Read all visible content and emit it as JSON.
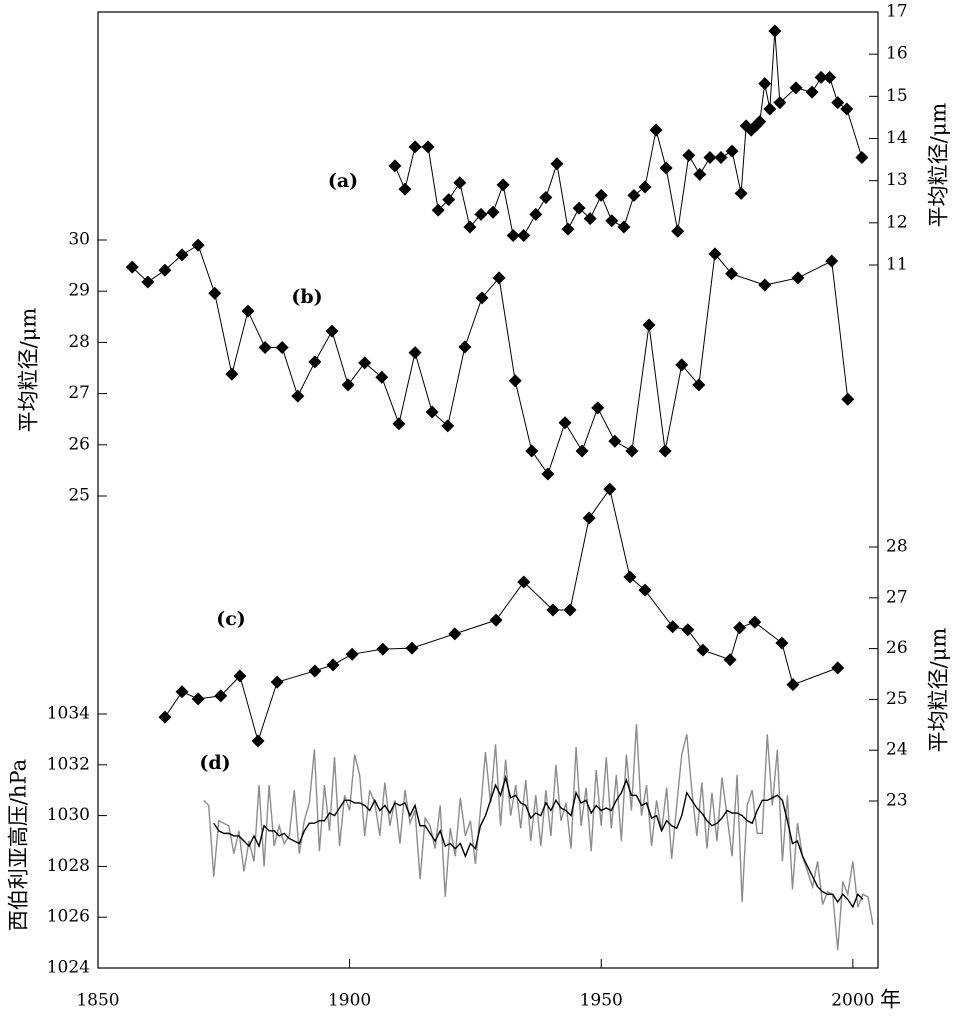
{
  "chart_data": [
    {
      "type": "line",
      "label": "(a)",
      "y_label": "平均粒径/μm",
      "axis": "right",
      "ylim": [
        11,
        17
      ],
      "yticks": [
        11,
        12,
        13,
        14,
        15,
        16,
        17
      ],
      "series": [
        {
          "color": "#000000",
          "marker": "diamond",
          "x": [
            1909.0,
            1911.0,
            1913.0,
            1915.6,
            1917.6,
            1919.7,
            1921.9,
            1923.9,
            1926.1,
            1928.5,
            1930.5,
            1932.5,
            1934.6,
            1937.0,
            1939.0,
            1941.2,
            1943.4,
            1945.6,
            1947.8,
            1950.0,
            1952.1,
            1954.5,
            1956.5,
            1958.7,
            1960.9,
            1962.9,
            1965.2,
            1967.4,
            1969.6,
            1971.6,
            1973.8,
            1976.0,
            1977.8,
            1978.8,
            1979.8,
            1980.7,
            1981.5,
            1982.5,
            1983.5,
            1984.5,
            1985.5,
            1988.7,
            1991.9,
            1993.7,
            1995.4,
            1997.0,
            1998.8,
            2001.8
          ],
          "values": [
            13.35,
            12.8,
            13.8,
            13.8,
            12.3,
            12.55,
            12.95,
            11.9,
            12.2,
            12.25,
            12.9,
            11.7,
            11.7,
            12.2,
            12.6,
            13.4,
            11.85,
            12.35,
            12.1,
            12.65,
            12.05,
            11.9,
            12.65,
            12.85,
            14.2,
            13.3,
            11.8,
            13.6,
            13.15,
            13.55,
            13.55,
            13.7,
            12.7,
            14.3,
            14.2,
            14.3,
            14.4,
            15.3,
            14.7,
            16.55,
            14.85,
            15.2,
            15.1,
            15.45,
            15.45,
            14.85,
            14.7,
            13.55
          ]
        }
      ]
    },
    {
      "type": "line",
      "label": "(b)",
      "y_label": "平均粒径/μm",
      "axis": "left",
      "ylim": [
        25,
        30
      ],
      "yticks": [
        25,
        26,
        27,
        28,
        29,
        30
      ],
      "series": [
        {
          "color": "#000000",
          "marker": "diamond",
          "x": [
            1856.8,
            1859.9,
            1863.3,
            1866.7,
            1869.9,
            1873.2,
            1876.6,
            1879.8,
            1883.2,
            1886.6,
            1889.7,
            1893.1,
            1896.5,
            1899.7,
            1903.0,
            1906.4,
            1909.8,
            1913.0,
            1916.4,
            1919.5,
            1922.9,
            1926.3,
            1929.7,
            1932.9,
            1936.2,
            1939.4,
            1942.8,
            1946.2,
            1949.3,
            1952.7,
            1956.1,
            1959.5,
            1962.7,
            1966.0,
            1969.4,
            1972.6,
            1975.9,
            1982.5,
            1989.1,
            1995.8,
            1999.0
          ],
          "values": [
            29.47,
            29.18,
            29.41,
            29.71,
            29.9,
            28.96,
            27.38,
            28.61,
            27.9,
            27.9,
            26.95,
            27.62,
            28.22,
            27.17,
            27.6,
            27.32,
            26.41,
            27.8,
            26.64,
            26.37,
            27.91,
            28.87,
            29.26,
            27.25,
            25.88,
            25.43,
            26.43,
            25.88,
            26.72,
            26.07,
            25.88,
            28.34,
            25.88,
            27.56,
            27.17,
            29.73,
            29.34,
            29.12,
            29.26,
            29.59,
            26.89
          ]
        }
      ]
    },
    {
      "type": "line",
      "label": "(c)",
      "y_label": "平均粒径/μm",
      "axis": "right",
      "ylim": [
        23,
        28
      ],
      "yticks": [
        23,
        24,
        25,
        26,
        27,
        28
      ],
      "series": [
        {
          "color": "#000000",
          "marker": "diamond",
          "x": [
            1863.3,
            1866.7,
            1869.9,
            1874.4,
            1878.2,
            1881.8,
            1885.6,
            1893.1,
            1896.7,
            1900.5,
            1906.6,
            1912.4,
            1920.9,
            1929.1,
            1934.6,
            1940.4,
            1943.8,
            1947.6,
            1951.7,
            1955.7,
            1958.7,
            1964.2,
            1967.2,
            1970.2,
            1975.6,
            1977.5,
            1980.5,
            1985.9,
            1988.1,
            1997.0
          ],
          "values": [
            24.65,
            25.15,
            25.01,
            25.07,
            25.46,
            24.18,
            25.34,
            25.56,
            25.68,
            25.89,
            25.99,
            26.01,
            26.29,
            26.56,
            27.31,
            26.76,
            26.76,
            28.57,
            29.14,
            27.41,
            27.15,
            26.43,
            26.37,
            25.97,
            25.78,
            26.41,
            26.52,
            26.11,
            25.29,
            25.62
          ]
        }
      ]
    },
    {
      "type": "line",
      "label": "(d)",
      "y_label": "西伯利亚高压/hPa",
      "axis": "left",
      "ylim": [
        1024,
        1034
      ],
      "yticks": [
        1024,
        1026,
        1028,
        1030,
        1032,
        1034
      ],
      "xlim": [
        1850,
        2005
      ],
      "xticks": [
        1850,
        1900,
        1950,
        2000
      ],
      "x_label": "年",
      "series": [
        {
          "color": "#8c8c8c",
          "x": [
            1871,
            1872,
            1873,
            1874,
            1875,
            1876,
            1877,
            1878,
            1879,
            1880,
            1881,
            1882,
            1883,
            1884,
            1885,
            1886,
            1887,
            1888,
            1889,
            1890,
            1891,
            1892,
            1893,
            1894,
            1895,
            1896,
            1897,
            1898,
            1899,
            1900,
            1901,
            1902,
            1903,
            1904,
            1905,
            1906,
            1907,
            1908,
            1909,
            1910,
            1911,
            1912,
            1913,
            1914,
            1915,
            1916,
            1917,
            1918,
            1919,
            1920,
            1921,
            1922,
            1923,
            1924,
            1925,
            1926,
            1927,
            1928,
            1929,
            1930,
            1931,
            1932,
            1933,
            1934,
            1935,
            1936,
            1937,
            1938,
            1939,
            1940,
            1941,
            1942,
            1943,
            1944,
            1945,
            1946,
            1947,
            1948,
            1949,
            1950,
            1951,
            1952,
            1953,
            1954,
            1955,
            1956,
            1957,
            1958,
            1959,
            1960,
            1961,
            1962,
            1963,
            1964,
            1965,
            1966,
            1967,
            1968,
            1969,
            1970,
            1971,
            1972,
            1973,
            1974,
            1975,
            1976,
            1977,
            1978,
            1979,
            1980,
            1981,
            1982,
            1983,
            1984,
            1985,
            1986,
            1987,
            1988,
            1989,
            1990,
            1991,
            1992,
            1993,
            1994,
            1995,
            1996,
            1997,
            1998,
            1999,
            2000,
            2001,
            2002,
            2003,
            2004
          ],
          "values": [
            1030.6,
            1030.4,
            1027.6,
            1029.8,
            1029.7,
            1029.6,
            1028.5,
            1029.4,
            1027.8,
            1029.0,
            1028.2,
            1031.2,
            1028.0,
            1031.2,
            1028.8,
            1029.6,
            1028.9,
            1029.2,
            1031.0,
            1028.5,
            1029.8,
            1030.5,
            1032.6,
            1028.6,
            1031.2,
            1029.4,
            1032.3,
            1028.8,
            1030.8,
            1030.2,
            1032.4,
            1031.6,
            1029.2,
            1031.0,
            1030.5,
            1029.2,
            1031.3,
            1029.6,
            1030.6,
            1028.9,
            1031.0,
            1029.7,
            1030.2,
            1027.5,
            1029.9,
            1029.6,
            1028.7,
            1030.4,
            1026.8,
            1029.5,
            1028.4,
            1030.7,
            1029.2,
            1029.8,
            1028.1,
            1030.2,
            1032.5,
            1030.5,
            1032.8,
            1029.6,
            1032.2,
            1030.0,
            1031.2,
            1029.5,
            1031.4,
            1029.0,
            1030.8,
            1028.8,
            1031.0,
            1029.2,
            1032.0,
            1029.8,
            1030.5,
            1028.7,
            1032.7,
            1029.6,
            1031.1,
            1028.6,
            1031.8,
            1029.6,
            1032.3,
            1029.5,
            1031.6,
            1029.0,
            1032.4,
            1030.2,
            1033.6,
            1030.0,
            1031.2,
            1028.8,
            1030.6,
            1029.4,
            1031.1,
            1028.3,
            1030.4,
            1032.4,
            1033.2,
            1031.0,
            1029.2,
            1031.3,
            1028.7,
            1030.9,
            1029.0,
            1031.5,
            1030.0,
            1028.4,
            1031.6,
            1026.6,
            1030.4,
            1031.0,
            1029.3,
            1029.3,
            1033.2,
            1030.4,
            1032.6,
            1028.2,
            1030.8,
            1027.1,
            1029.7,
            1028.4,
            1027.8,
            1027.2,
            1028.2,
            1026.5,
            1027.0,
            1026.9,
            1024.7,
            1027.4,
            1026.9,
            1028.2,
            1026.4,
            1026.9,
            1026.8,
            1025.7
          ]
        },
        {
          "color": "#000000",
          "x": [
            1873,
            1874,
            1875,
            1876,
            1877,
            1878,
            1879,
            1880,
            1881,
            1882,
            1883,
            1884,
            1885,
            1886,
            1887,
            1888,
            1889,
            1890,
            1891,
            1892,
            1893,
            1894,
            1895,
            1896,
            1897,
            1898,
            1899,
            1900,
            1901,
            1902,
            1903,
            1904,
            1905,
            1906,
            1907,
            1908,
            1909,
            1910,
            1911,
            1912,
            1913,
            1914,
            1915,
            1916,
            1917,
            1918,
            1919,
            1920,
            1921,
            1922,
            1923,
            1924,
            1925,
            1926,
            1927,
            1928,
            1929,
            1930,
            1931,
            1932,
            1933,
            1934,
            1935,
            1936,
            1937,
            1938,
            1939,
            1940,
            1941,
            1942,
            1943,
            1944,
            1945,
            1946,
            1947,
            1948,
            1949,
            1950,
            1951,
            1952,
            1953,
            1954,
            1955,
            1956,
            1957,
            1958,
            1959,
            1960,
            1961,
            1962,
            1963,
            1964,
            1965,
            1966,
            1967,
            1968,
            1969,
            1970,
            1971,
            1972,
            1973,
            1974,
            1975,
            1976,
            1977,
            1978,
            1979,
            1980,
            1981,
            1982,
            1983,
            1984,
            1985,
            1986,
            1987,
            1988,
            1989,
            1990,
            1991,
            1992,
            1993,
            1994,
            1995,
            1996,
            1997,
            1998,
            1999,
            2000,
            2001,
            2002
          ],
          "values": [
            1029.7,
            1029.4,
            1029.3,
            1029.3,
            1029.2,
            1029.2,
            1029.0,
            1028.8,
            1029.2,
            1028.8,
            1029.6,
            1029.4,
            1029.4,
            1029.2,
            1029.3,
            1029.1,
            1029.0,
            1028.9,
            1029.4,
            1029.7,
            1029.7,
            1029.8,
            1029.8,
            1030.1,
            1030.0,
            1030.3,
            1030.6,
            1030.6,
            1030.5,
            1030.5,
            1030.4,
            1030.2,
            1030.6,
            1030.2,
            1030.4,
            1030.1,
            1030.5,
            1030.4,
            1030.5,
            1030.0,
            1030.4,
            1029.6,
            1029.6,
            1029.3,
            1029.0,
            1029.4,
            1028.8,
            1028.9,
            1028.7,
            1028.9,
            1028.4,
            1028.9,
            1028.7,
            1029.6,
            1030.0,
            1030.6,
            1031.2,
            1030.8,
            1031.5,
            1030.7,
            1030.8,
            1030.5,
            1030.4,
            1029.9,
            1030.1,
            1030.0,
            1030.5,
            1030.2,
            1030.6,
            1030.3,
            1030.2,
            1030.0,
            1030.9,
            1030.5,
            1030.6,
            1030.1,
            1030.4,
            1030.2,
            1030.3,
            1030.2,
            1030.6,
            1030.9,
            1031.4,
            1030.8,
            1030.8,
            1030.4,
            1030.5,
            1029.9,
            1030.0,
            1029.4,
            1029.8,
            1029.6,
            1029.5,
            1030.0,
            1030.9,
            1030.6,
            1030.3,
            1030.1,
            1029.8,
            1029.6,
            1029.7,
            1029.9,
            1030.2,
            1030.1,
            1030.1,
            1030.0,
            1029.8,
            1029.7,
            1030.2,
            1030.6,
            1030.6,
            1030.7,
            1030.8,
            1030.6,
            1029.8,
            1028.9,
            1029.0,
            1028.4,
            1028.0,
            1027.6,
            1027.2,
            1027.0,
            1026.9,
            1026.9,
            1026.6,
            1026.9,
            1026.7,
            1026.4,
            1026.9,
            1026.7
          ]
        }
      ]
    }
  ]
}
